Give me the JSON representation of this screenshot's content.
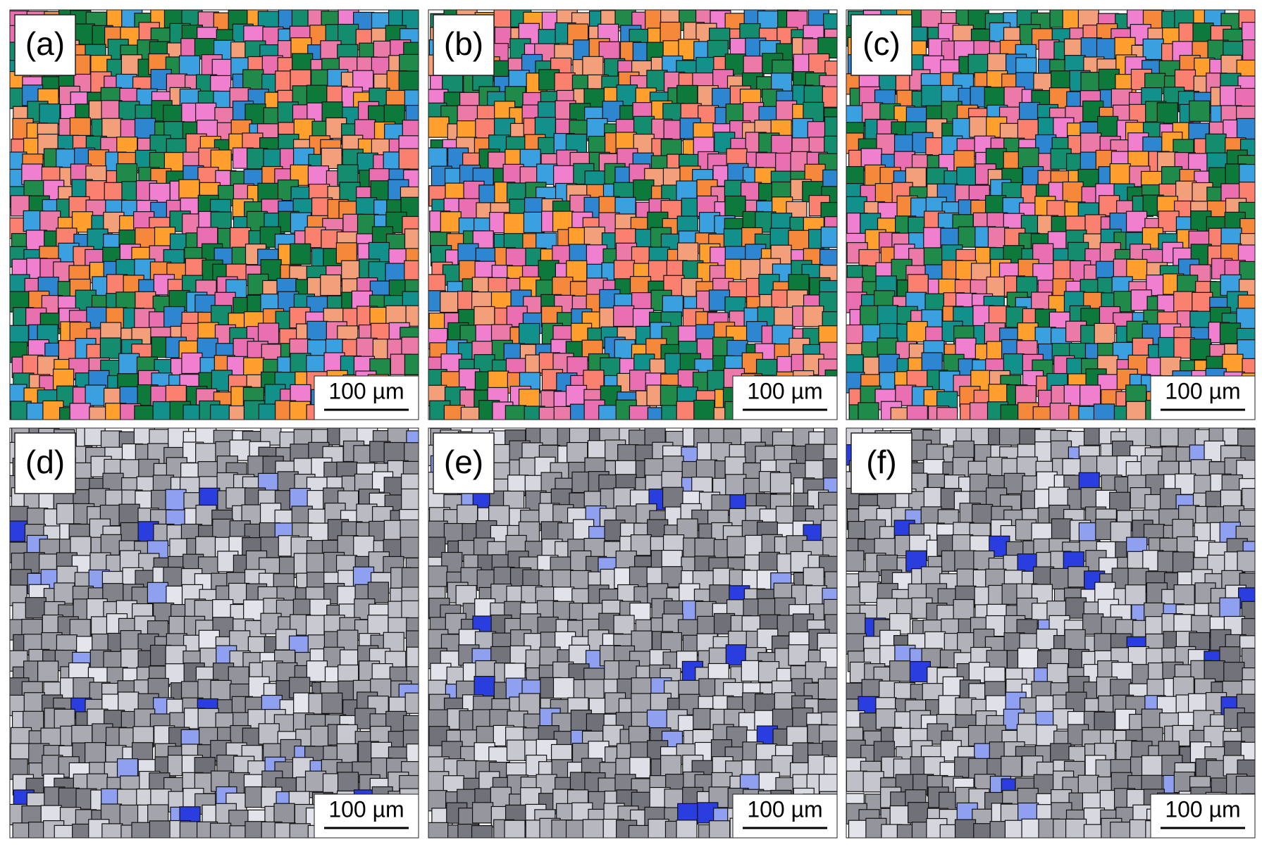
{
  "panels": [
    {
      "label": "(a)",
      "scale_bar": "100 µm"
    },
    {
      "label": "(b)",
      "scale_bar": "100 µm"
    },
    {
      "label": "(c)",
      "scale_bar": "100 µm"
    },
    {
      "label": "(d)",
      "scale_bar": "100 µm"
    },
    {
      "label": "(e)",
      "scale_bar": "100 µm"
    },
    {
      "label": "(f)",
      "scale_bar": "100 µm"
    }
  ]
}
